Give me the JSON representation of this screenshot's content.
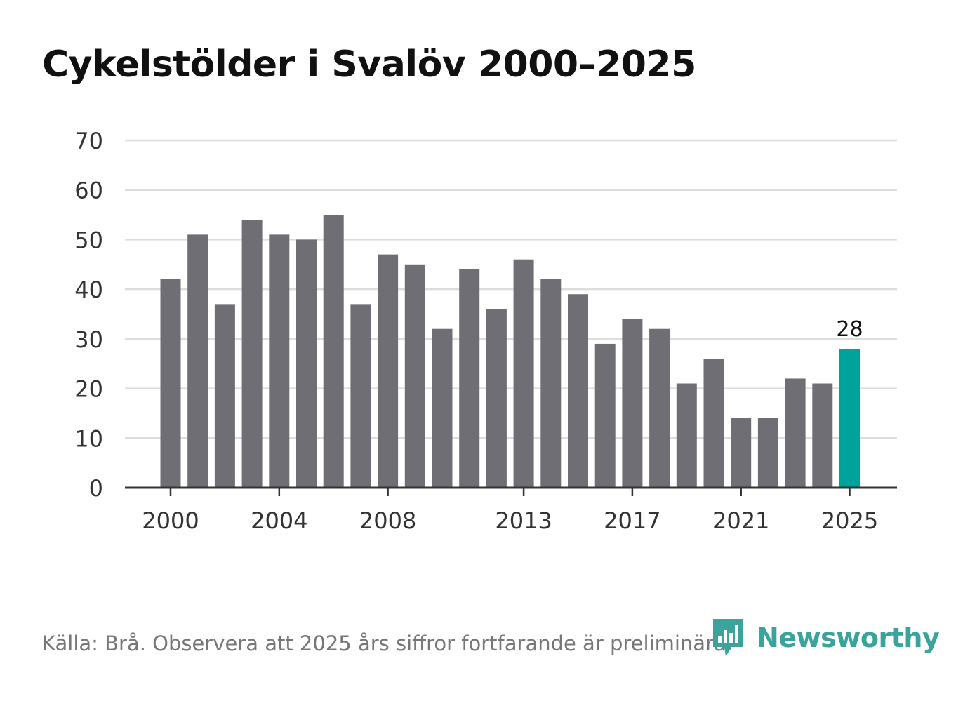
{
  "title": "Cykelstölder i Svalöv 2000–2025",
  "source": "Källa: Brå. Observera att 2025 års siffror fortfarande är preliminära.",
  "brand": {
    "name": "Newsworthy",
    "icon": "bar-chart-icon",
    "color": "#3aa39b"
  },
  "colors": {
    "bar": "#6f6e74",
    "highlight": "#00a39b",
    "grid": "#dddddd",
    "axis": "#333333",
    "text": "#333333"
  },
  "chart_data": {
    "type": "bar",
    "title": "Cykelstölder i Svalöv 2000–2025",
    "xlabel": "",
    "ylabel": "",
    "categories": [
      "2000",
      "2001",
      "2002",
      "2003",
      "2004",
      "2005",
      "2006",
      "2007",
      "2008",
      "2009",
      "2010",
      "2011",
      "2012",
      "2013",
      "2014",
      "2015",
      "2016",
      "2017",
      "2018",
      "2019",
      "2020",
      "2021",
      "2022",
      "2023",
      "2024",
      "2025"
    ],
    "values": [
      42,
      51,
      37,
      54,
      51,
      50,
      55,
      37,
      47,
      45,
      32,
      44,
      36,
      46,
      42,
      39,
      29,
      34,
      32,
      21,
      26,
      14,
      14,
      22,
      21,
      28
    ],
    "ylim": [
      0,
      70
    ],
    "yticks": [
      0,
      10,
      20,
      30,
      40,
      50,
      60,
      70
    ],
    "xticks": [
      "2000",
      "2004",
      "2008",
      "2013",
      "2017",
      "2021",
      "2025"
    ],
    "highlight": {
      "category": "2025",
      "label": "28"
    },
    "grid": true
  }
}
